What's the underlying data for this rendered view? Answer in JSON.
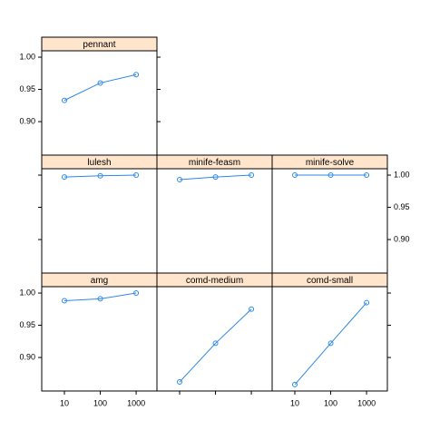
{
  "chart_data": {
    "type": "line",
    "x": [
      10,
      100,
      1000
    ],
    "xlim": [
      2.33,
      3800
    ],
    "xticks": [
      10,
      100,
      1000
    ],
    "x_log": true,
    "ylim": [
      0.848,
      1.0099
    ],
    "yticks": [
      {
        "value": 0.9,
        "label": "0.90"
      },
      {
        "value": 0.95,
        "label": "0.95"
      },
      {
        "value": 1.0,
        "label": "1.00"
      }
    ],
    "color": "#2b88e8",
    "strip_color": "#ffe5cc",
    "series": [
      {
        "name": "pennant",
        "values": [
          0.933,
          0.96,
          0.973
        ]
      },
      {
        "name": "lulesh",
        "values": [
          0.997,
          0.999,
          1.0
        ]
      },
      {
        "name": "minife-feasm",
        "values": [
          0.993,
          0.997,
          1.0
        ]
      },
      {
        "name": "minife-solve",
        "values": [
          1.0,
          1.0,
          1.0
        ]
      },
      {
        "name": "amg",
        "values": [
          0.988,
          0.991,
          1.0
        ]
      },
      {
        "name": "comd-medium",
        "values": [
          0.862,
          0.922,
          0.975
        ]
      },
      {
        "name": "comd-small",
        "values": [
          0.858,
          0.922,
          0.985
        ]
      }
    ]
  }
}
